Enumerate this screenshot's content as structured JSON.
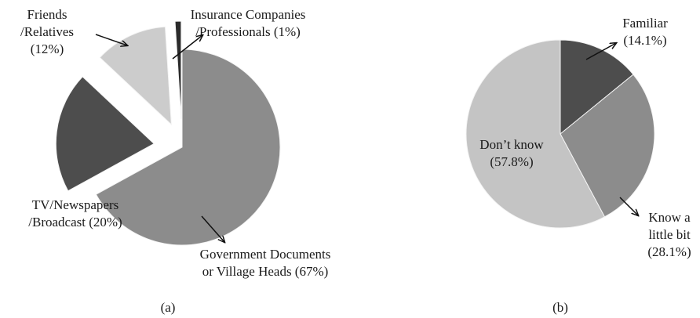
{
  "chart_data": [
    {
      "type": "pie",
      "caption": "(a)",
      "exploded": true,
      "slices": [
        {
          "lines": [
            "Government Documents",
            "or Village Heads (67%)"
          ],
          "value": 67,
          "color": "#8c8c8c"
        },
        {
          "lines": [
            "TV/Newspapers",
            "/Broadcast (20%)"
          ],
          "value": 20,
          "color": "#4d4d4d"
        },
        {
          "lines": [
            "Friends",
            "/Relatives",
            "(12%)"
          ],
          "value": 12,
          "color": "#cccccc"
        },
        {
          "lines": [
            "Insurance Companies",
            "/Professionals (1%)"
          ],
          "value": 1,
          "color": "#2b2b2b"
        }
      ]
    },
    {
      "type": "pie",
      "caption": "(b)",
      "exploded": false,
      "slices": [
        {
          "lines": [
            "Familiar",
            "(14.1%)"
          ],
          "value": 14.1,
          "color": "#4d4d4d"
        },
        {
          "lines": [
            "Know a",
            "little bit",
            "(28.1%)"
          ],
          "value": 28.1,
          "color": "#8c8c8c"
        },
        {
          "lines": [
            "Don’t know",
            "(57.8%)"
          ],
          "value": 57.8,
          "color": "#c4c4c4"
        }
      ]
    }
  ]
}
